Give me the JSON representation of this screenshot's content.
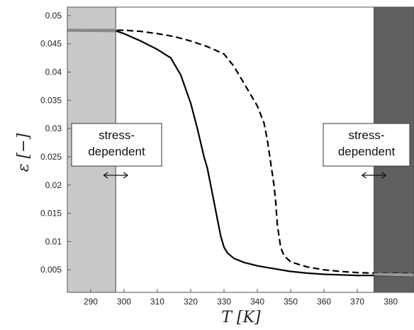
{
  "chart_data": {
    "type": "line",
    "title": "",
    "xlabel": "T [K]",
    "ylabel": "ε [−]",
    "xlim": [
      283,
      387
    ],
    "ylim": [
      0.001,
      0.0515
    ],
    "xticks": [
      290,
      300,
      310,
      320,
      330,
      340,
      350,
      360,
      370,
      380
    ],
    "yticks": [
      0.005,
      0.01,
      0.015,
      0.02,
      0.025,
      0.03,
      0.035,
      0.04,
      0.045,
      0.05
    ],
    "xtick_labels": [
      "290",
      "300",
      "310",
      "320",
      "330",
      "340",
      "350",
      "360",
      "370",
      "380"
    ],
    "ytick_labels": [
      "0.005",
      "0.01",
      "0.015",
      "0.02",
      "0.025",
      "0.03",
      "0.035",
      "0.04",
      "0.045",
      "0.05"
    ],
    "grid": false,
    "series": [
      {
        "style": "solid",
        "color": "#000000",
        "x": [
          283,
          297.5,
          300,
          305,
          310,
          314,
          317,
          320,
          322,
          324,
          325,
          326,
          327,
          328,
          329,
          330,
          331,
          333,
          336,
          340,
          345,
          350,
          355,
          360,
          365,
          370,
          375,
          387
        ],
        "y": [
          0.0474,
          0.0473,
          0.0468,
          0.0455,
          0.044,
          0.0425,
          0.0395,
          0.0345,
          0.03,
          0.025,
          0.023,
          0.02,
          0.017,
          0.014,
          0.011,
          0.009,
          0.008,
          0.007,
          0.0063,
          0.0057,
          0.0052,
          0.0047,
          0.0044,
          0.0042,
          0.0041,
          0.004,
          0.004,
          0.004
        ]
      },
      {
        "style": "dashed",
        "color": "#000000",
        "x": [
          283,
          297.5,
          300,
          305,
          310,
          315,
          320,
          325,
          330,
          333,
          337,
          340,
          342,
          343,
          344,
          345,
          345.5,
          346,
          347,
          348,
          350,
          355,
          360,
          365,
          370,
          375,
          387
        ],
        "y": [
          0.0474,
          0.0474,
          0.0474,
          0.0472,
          0.0468,
          0.0463,
          0.0455,
          0.0445,
          0.0432,
          0.041,
          0.037,
          0.034,
          0.031,
          0.028,
          0.024,
          0.02,
          0.017,
          0.013,
          0.009,
          0.0075,
          0.0064,
          0.0055,
          0.005,
          0.0047,
          0.0045,
          0.0044,
          0.0043
        ]
      }
    ],
    "regions": [
      {
        "x_from": 283,
        "x_to": 297.5,
        "color": "#c8c8c8",
        "label": "stress-dependent"
      },
      {
        "x_from": 375,
        "x_to": 387,
        "color": "#606060",
        "label": "stress-dependent"
      }
    ],
    "annotations": [
      {
        "text_lines": [
          "stress-",
          "dependent"
        ],
        "region": "left",
        "arrow": "double"
      },
      {
        "text_lines": [
          "stress-",
          "dependent"
        ],
        "region": "right",
        "arrow": "double"
      }
    ]
  }
}
